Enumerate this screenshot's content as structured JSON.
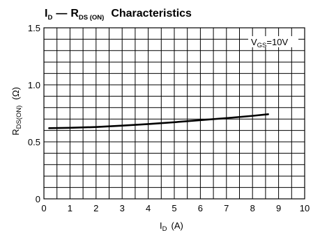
{
  "chart_data": {
    "type": "line",
    "title": {
      "var1": "I",
      "var1_sub": "D",
      "dash": "—",
      "var2": "R",
      "var2_sub": "DS (ON)",
      "rest": "Characteristics"
    },
    "xlabel": {
      "var": "I",
      "sub": "D",
      "unit": "(A)"
    },
    "ylabel": {
      "var": "R",
      "sub": "DS(ON)",
      "unit": "(Ω)"
    },
    "xlim": [
      0,
      10
    ],
    "ylim": [
      0,
      1.5
    ],
    "x_ticks": [
      0,
      1,
      2,
      3,
      4,
      5,
      6,
      7,
      8,
      9,
      10
    ],
    "y_tick_labels": [
      {
        "value": 0,
        "label": "0"
      },
      {
        "value": 0.5,
        "label": "0.5"
      },
      {
        "value": 1.0,
        "label": "1.0"
      },
      {
        "value": 1.5,
        "label": "1.5"
      }
    ],
    "grid": true,
    "annotation": {
      "var": "V",
      "sub": "GS",
      "rest": "=10V"
    },
    "series": [
      {
        "x": [
          0.2,
          1,
          2,
          3,
          4,
          5,
          6,
          7,
          8,
          8.6
        ],
        "y": [
          0.62,
          0.623,
          0.63,
          0.642,
          0.656,
          0.672,
          0.69,
          0.708,
          0.728,
          0.742
        ]
      }
    ]
  }
}
